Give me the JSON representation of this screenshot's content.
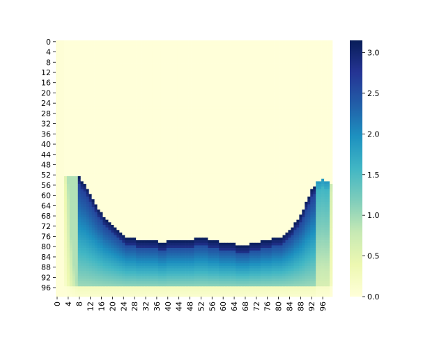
{
  "chart_data": {
    "type": "heatmap",
    "title": "",
    "xlabel": "",
    "ylabel": "",
    "rows": 100,
    "cols": 100,
    "x_ticks": [
      0,
      4,
      8,
      12,
      16,
      20,
      24,
      28,
      32,
      36,
      40,
      44,
      48,
      52,
      56,
      60,
      64,
      68,
      72,
      76,
      80,
      84,
      88,
      92,
      96
    ],
    "y_ticks": [
      0,
      4,
      8,
      12,
      16,
      20,
      24,
      28,
      32,
      36,
      40,
      44,
      48,
      52,
      56,
      60,
      64,
      68,
      72,
      76,
      80,
      84,
      88,
      92,
      96
    ],
    "colorbar": {
      "min": 0.0,
      "max": 3.15,
      "ticks": [
        "0.0",
        "0.5",
        "1.0",
        "1.5",
        "2.0",
        "2.5",
        "3.0"
      ],
      "tick_values": [
        0.0,
        0.5,
        1.0,
        1.5,
        2.0,
        2.5,
        3.0
      ],
      "colormap": "YlGnBu",
      "stops": [
        "#ffffd9",
        "#edf8b1",
        "#c7e9b4",
        "#7fcdbb",
        "#41b6c4",
        "#1d91c0",
        "#225ea8",
        "#253494",
        "#081d58"
      ]
    },
    "boundary_cols": [
      8,
      10,
      12,
      14,
      16,
      18,
      20,
      22,
      24,
      26,
      28,
      30,
      32,
      34,
      36,
      38,
      40,
      42,
      44,
      46,
      48,
      50,
      52,
      54,
      56,
      58,
      60,
      62,
      64,
      66,
      68,
      70,
      72,
      74,
      76,
      78,
      80,
      82,
      84,
      86,
      88,
      90,
      92,
      94,
      96,
      99
    ],
    "boundary_rows": [
      53,
      56,
      60,
      64,
      67,
      70,
      72,
      74,
      76,
      77,
      77,
      78,
      78,
      78,
      78,
      79,
      78,
      78,
      78,
      78,
      78,
      77,
      77,
      77,
      78,
      78,
      79,
      79,
      79,
      80,
      80,
      79,
      79,
      78,
      78,
      77,
      77,
      76,
      74,
      71,
      68,
      63,
      58,
      55,
      54,
      56
    ],
    "peak_value": 3.1,
    "edge_value": 0.05
  }
}
